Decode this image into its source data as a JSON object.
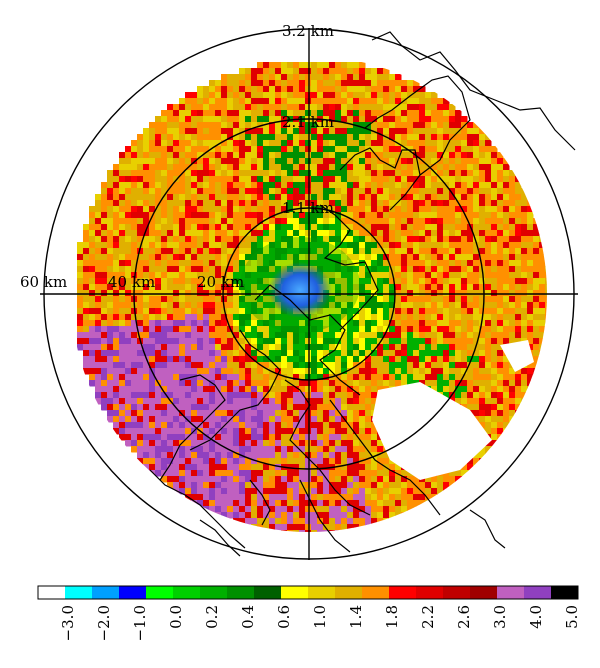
{
  "radar_map": {
    "ring_height_labels": [
      "3.2 km",
      "2.1 km",
      "1.1 km"
    ],
    "range_labels": [
      "60 km",
      "40 km",
      "20 km"
    ],
    "colors": {
      "background": "#ffffff",
      "axes": "#000000",
      "coastline": "#000000"
    }
  },
  "colorbar": {
    "colors": [
      "#ffffff",
      "#00ffff",
      "#00a0ff",
      "#0000ff",
      "#00ff00",
      "#00d000",
      "#00b000",
      "#009000",
      "#006000",
      "#ffff00",
      "#e8d000",
      "#e0b000",
      "#ff9000",
      "#ff0000",
      "#e00000",
      "#c00000",
      "#a00000",
      "#c060c0",
      "#9040c0",
      "#000000"
    ],
    "tick_labels": [
      "−3.0",
      "−2.0",
      "−1.0",
      "0.0",
      "0.2",
      "0.4",
      "0.6",
      "1.0",
      "1.4",
      "1.8",
      "2.2",
      "2.6",
      "3.0",
      "4.0",
      "5.0"
    ]
  }
}
